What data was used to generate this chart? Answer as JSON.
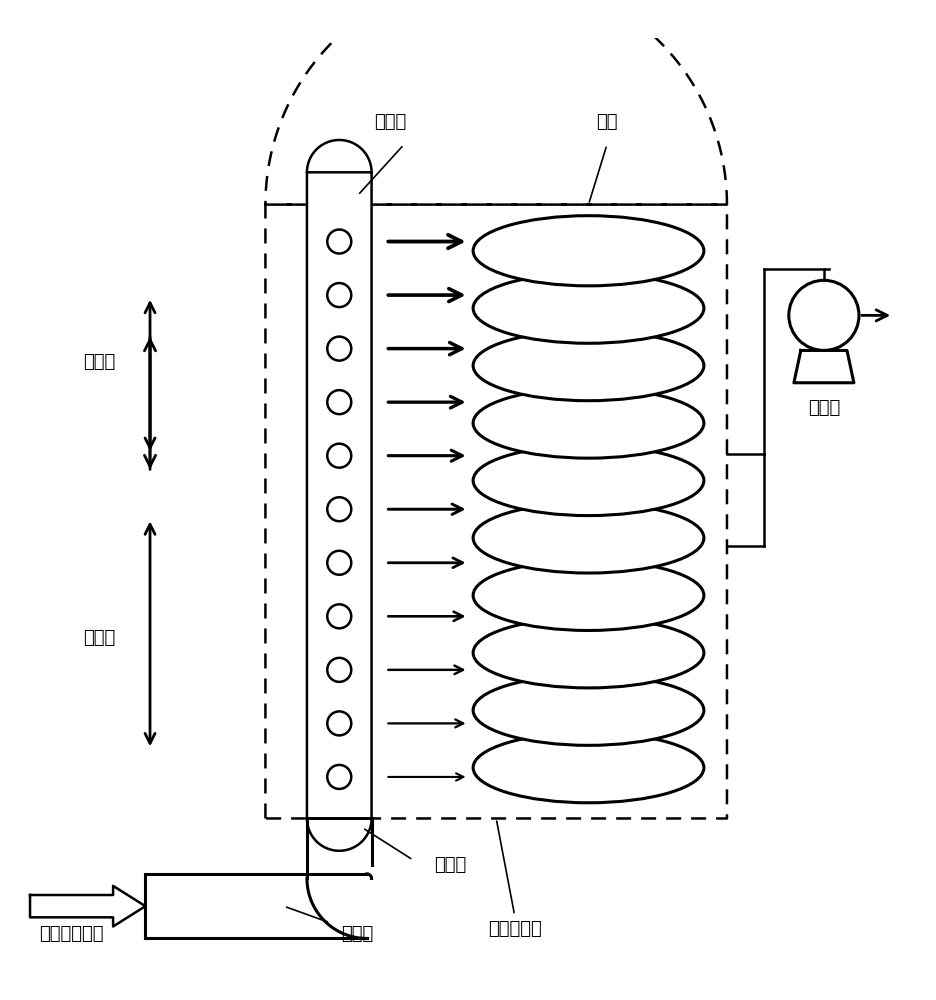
{
  "title": "",
  "fig_width": 9.37,
  "fig_height": 10.0,
  "dpi": 100,
  "bg_color": "#ffffff",
  "font_family": "SimHei",
  "labels": {
    "chu_qi_kong": "出气孔",
    "jing_yuan": "晶圆",
    "ya_li_xiao": "压力小",
    "ya_li_da": "压力大",
    "lu_nei_guan": "炉内管",
    "li_shi_kuo_san_lu": "立式扩散炉",
    "fan_ying_qi_ti_jin_qi": "反应气体进气",
    "lu_wai_guan": "炉外管",
    "zhen_kong_beng": "真空泵"
  }
}
